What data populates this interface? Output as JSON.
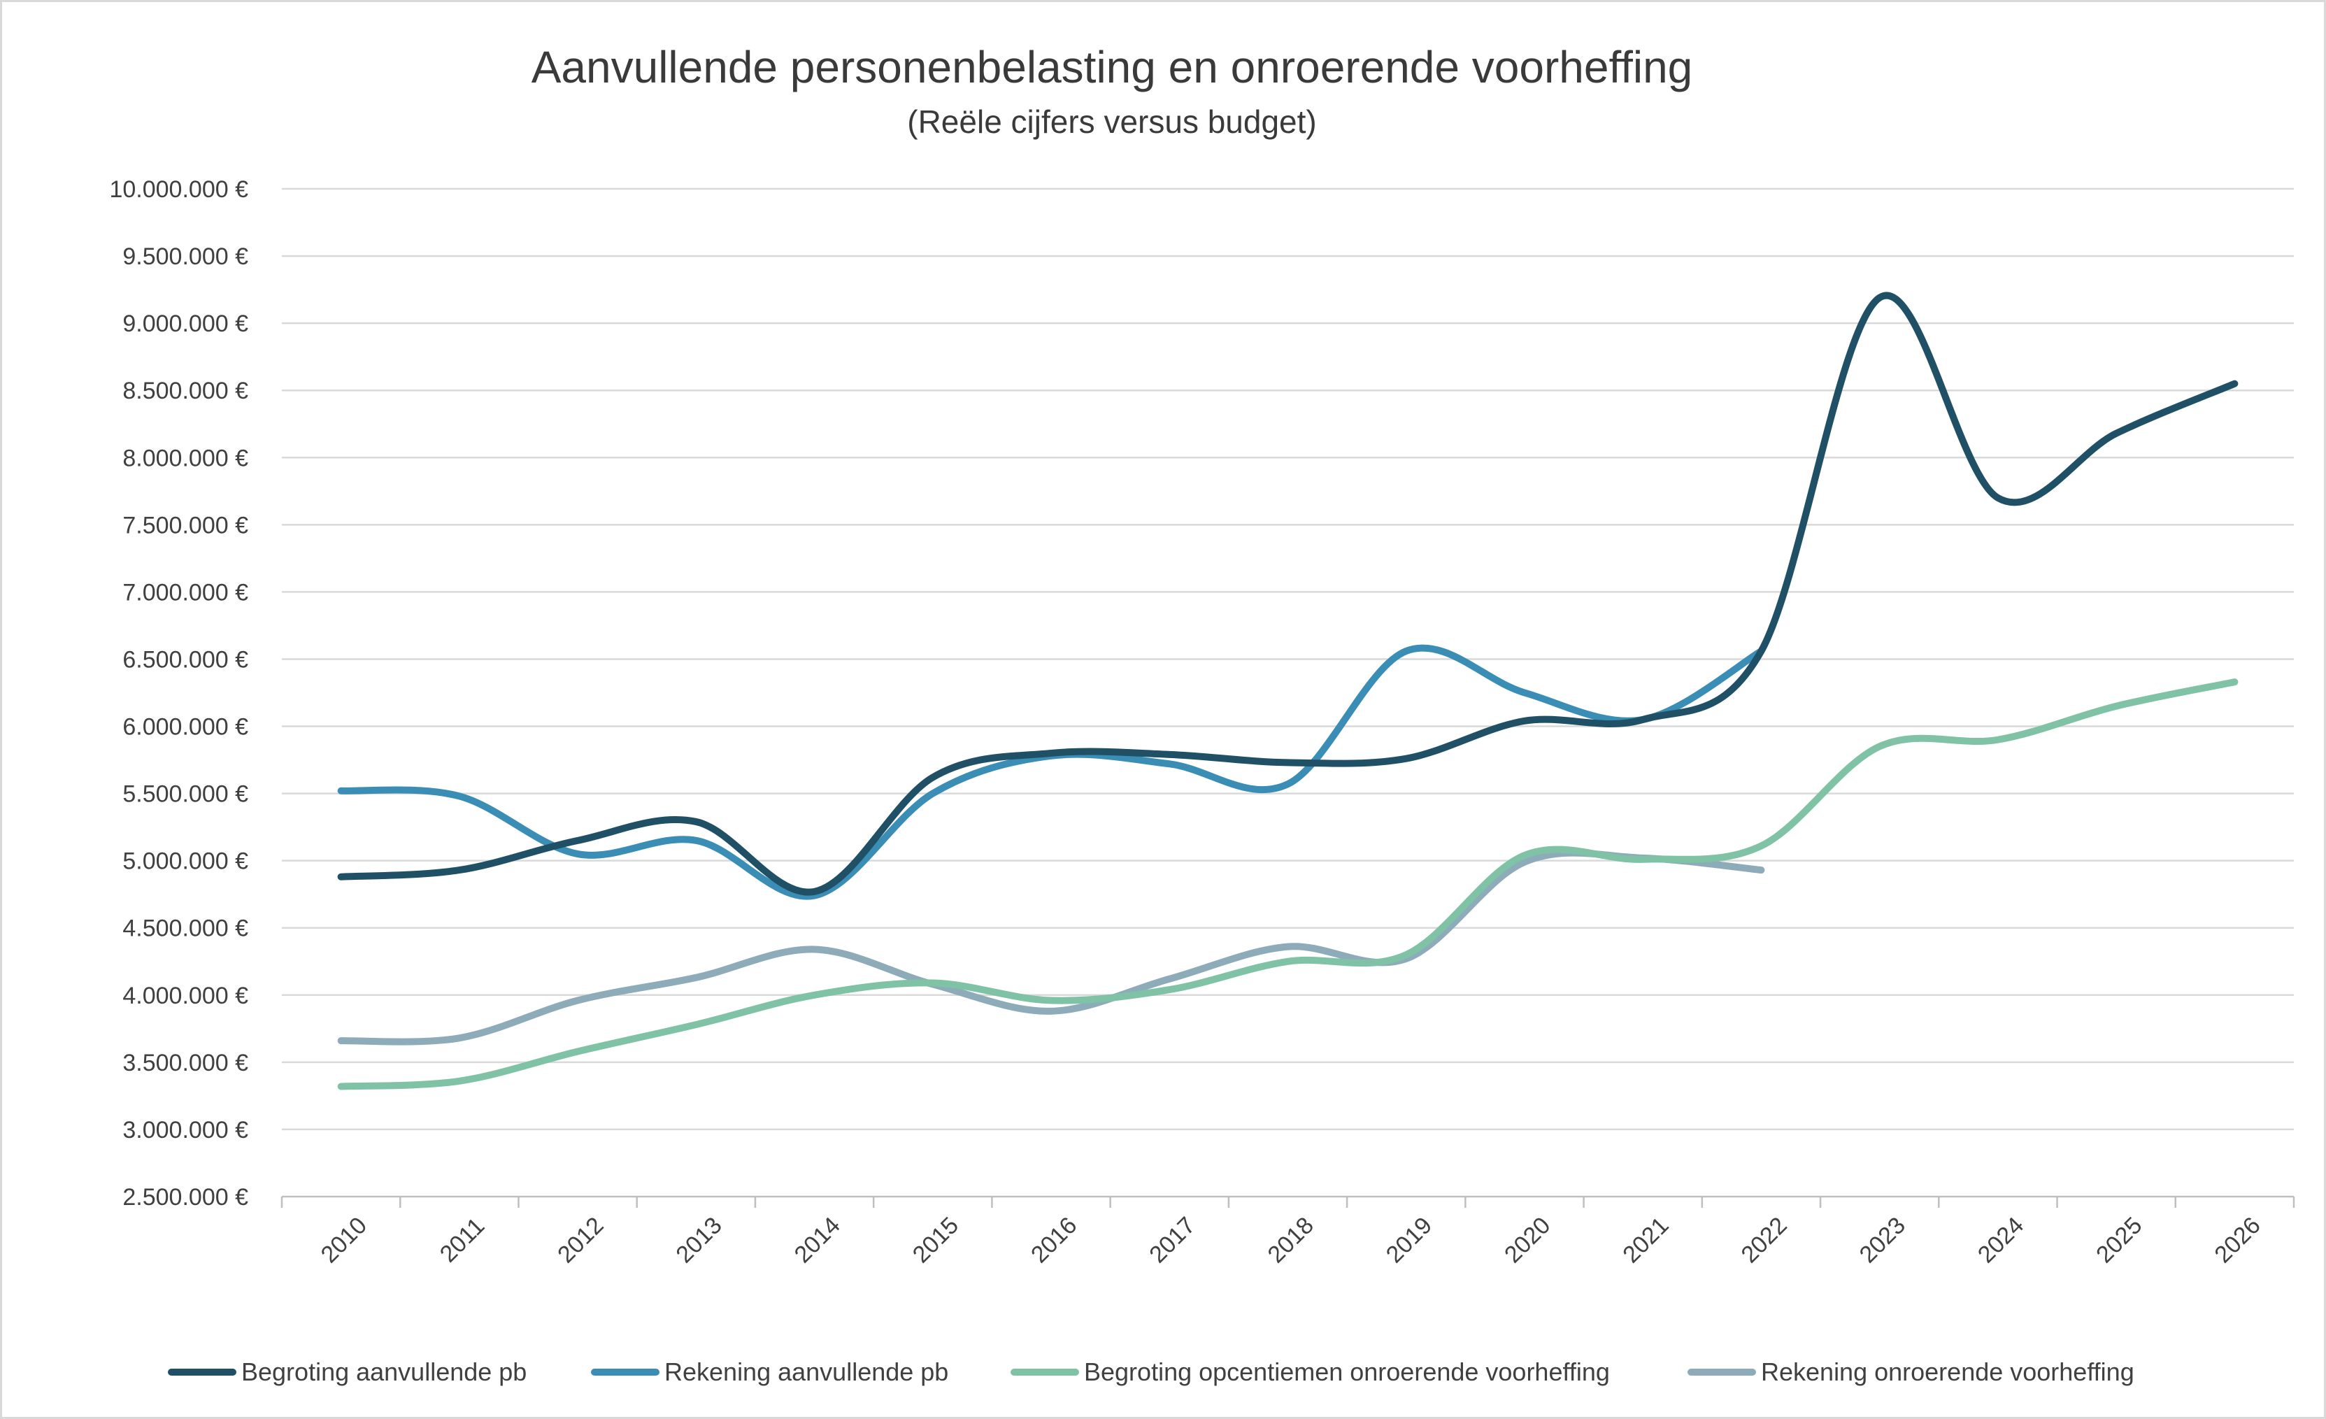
{
  "chart_data": {
    "type": "line",
    "title": "Aanvullende personenbelasting en onroerende voorheffing",
    "subtitle": "(Reële cijfers versus budget)",
    "xlabel": "",
    "ylabel": "",
    "ylim": [
      2500000,
      10000000
    ],
    "y_ticks": [
      {
        "value": 10000000,
        "label": "10.000.000 €"
      },
      {
        "value": 9500000,
        "label": "9.500.000 €"
      },
      {
        "value": 9000000,
        "label": "9.000.000 €"
      },
      {
        "value": 8500000,
        "label": "8.500.000 €"
      },
      {
        "value": 8000000,
        "label": "8.000.000 €"
      },
      {
        "value": 7500000,
        "label": "7.500.000 €"
      },
      {
        "value": 7000000,
        "label": "7.000.000 €"
      },
      {
        "value": 6500000,
        "label": "6.500.000 €"
      },
      {
        "value": 6000000,
        "label": "6.000.000 €"
      },
      {
        "value": 5500000,
        "label": "5.500.000 €"
      },
      {
        "value": 5000000,
        "label": "5.000.000 €"
      },
      {
        "value": 4500000,
        "label": "4.500.000 €"
      },
      {
        "value": 4000000,
        "label": "4.000.000 €"
      },
      {
        "value": 3500000,
        "label": "3.500.000 €"
      },
      {
        "value": 3000000,
        "label": "3.000.000 €"
      },
      {
        "value": 2500000,
        "label": "2.500.000 €"
      }
    ],
    "categories": [
      "2010",
      "2011",
      "2012",
      "2013",
      "2014",
      "2015",
      "2016",
      "2017",
      "2018",
      "2019",
      "2020",
      "2021",
      "2022",
      "2023",
      "2024",
      "2025",
      "2026"
    ],
    "grid": true,
    "legend_position": "bottom",
    "series": [
      {
        "name": "Begroting aanvullende pb",
        "color": "#1f5066",
        "values": [
          4880000,
          4930000,
          5150000,
          5290000,
          4770000,
          5620000,
          5800000,
          5790000,
          5730000,
          5760000,
          6040000,
          6050000,
          6560000,
          9190000,
          7700000,
          8180000,
          8550000
        ]
      },
      {
        "name": "Rekening aanvullende pb",
        "color": "#3a8db5",
        "values": [
          5520000,
          5480000,
          5050000,
          5150000,
          4740000,
          5500000,
          5780000,
          5720000,
          5570000,
          6560000,
          6250000,
          6050000,
          6560000,
          null,
          null,
          null,
          null
        ]
      },
      {
        "name": "Begroting opcentiemen onroerende voorheffing",
        "color": "#7fc2a6",
        "values": [
          3320000,
          3360000,
          3580000,
          3780000,
          4000000,
          4090000,
          3960000,
          4040000,
          4250000,
          4300000,
          5040000,
          5010000,
          5110000,
          5850000,
          5900000,
          6150000,
          6330000
        ]
      },
      {
        "name": "Rekening onroerende voorheffing",
        "color": "#8eabb9",
        "values": [
          3660000,
          3680000,
          3960000,
          4130000,
          4340000,
          4080000,
          3880000,
          4120000,
          4360000,
          4270000,
          4990000,
          5020000,
          4930000,
          null,
          null,
          null,
          null
        ]
      }
    ]
  }
}
